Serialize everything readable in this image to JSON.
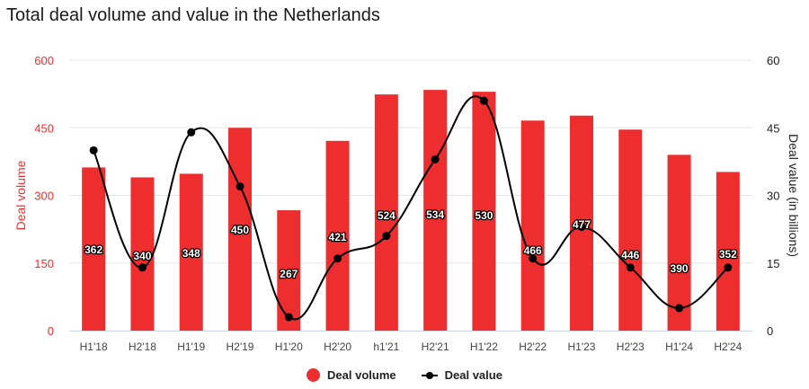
{
  "title": "Total deal volume and value in the Netherlands",
  "colors": {
    "bar": "#EE2E2E",
    "line": "#000000",
    "left_axis": "#EE2E2E",
    "grid": "#E6E6E6",
    "baseline": "#C8D6EA"
  },
  "legend": [
    {
      "label": "Deal volume",
      "symbol": "circle",
      "color": "#EE2E2E"
    },
    {
      "label": "Deal value",
      "symbol": "line-marker",
      "color": "#000000"
    }
  ],
  "chart_data": {
    "type": "bar+line",
    "title": "Total deal volume and value in the Netherlands",
    "categories": [
      "H1'18",
      "H2'18",
      "H1'19",
      "H2'19",
      "H1'20",
      "H2'20",
      "h1'21",
      "H2'21",
      "H1'22",
      "H2'22",
      "H1'23",
      "H2'23",
      "H1'24",
      "H2'24"
    ],
    "series": [
      {
        "name": "Deal volume",
        "type": "bar",
        "axis": "left",
        "values": [
          362,
          340,
          348,
          450,
          267,
          421,
          524,
          534,
          530,
          466,
          477,
          446,
          390,
          352
        ]
      },
      {
        "name": "Deal value",
        "type": "line",
        "axis": "right",
        "values": [
          40,
          14,
          44,
          32,
          3,
          16,
          21,
          38,
          51,
          16,
          23,
          14,
          5,
          14
        ]
      }
    ],
    "xlabel": "",
    "ylabel": "Deal volume",
    "ylabel_right": "Deal value (in billions)",
    "ylim": [
      0,
      600
    ],
    "ylim_right": [
      0,
      60
    ],
    "yticks": [
      0,
      150,
      300,
      450,
      600
    ],
    "yticks_right": [
      0,
      15,
      30,
      45,
      60
    ],
    "grid": true,
    "legend_position": "bottom"
  }
}
